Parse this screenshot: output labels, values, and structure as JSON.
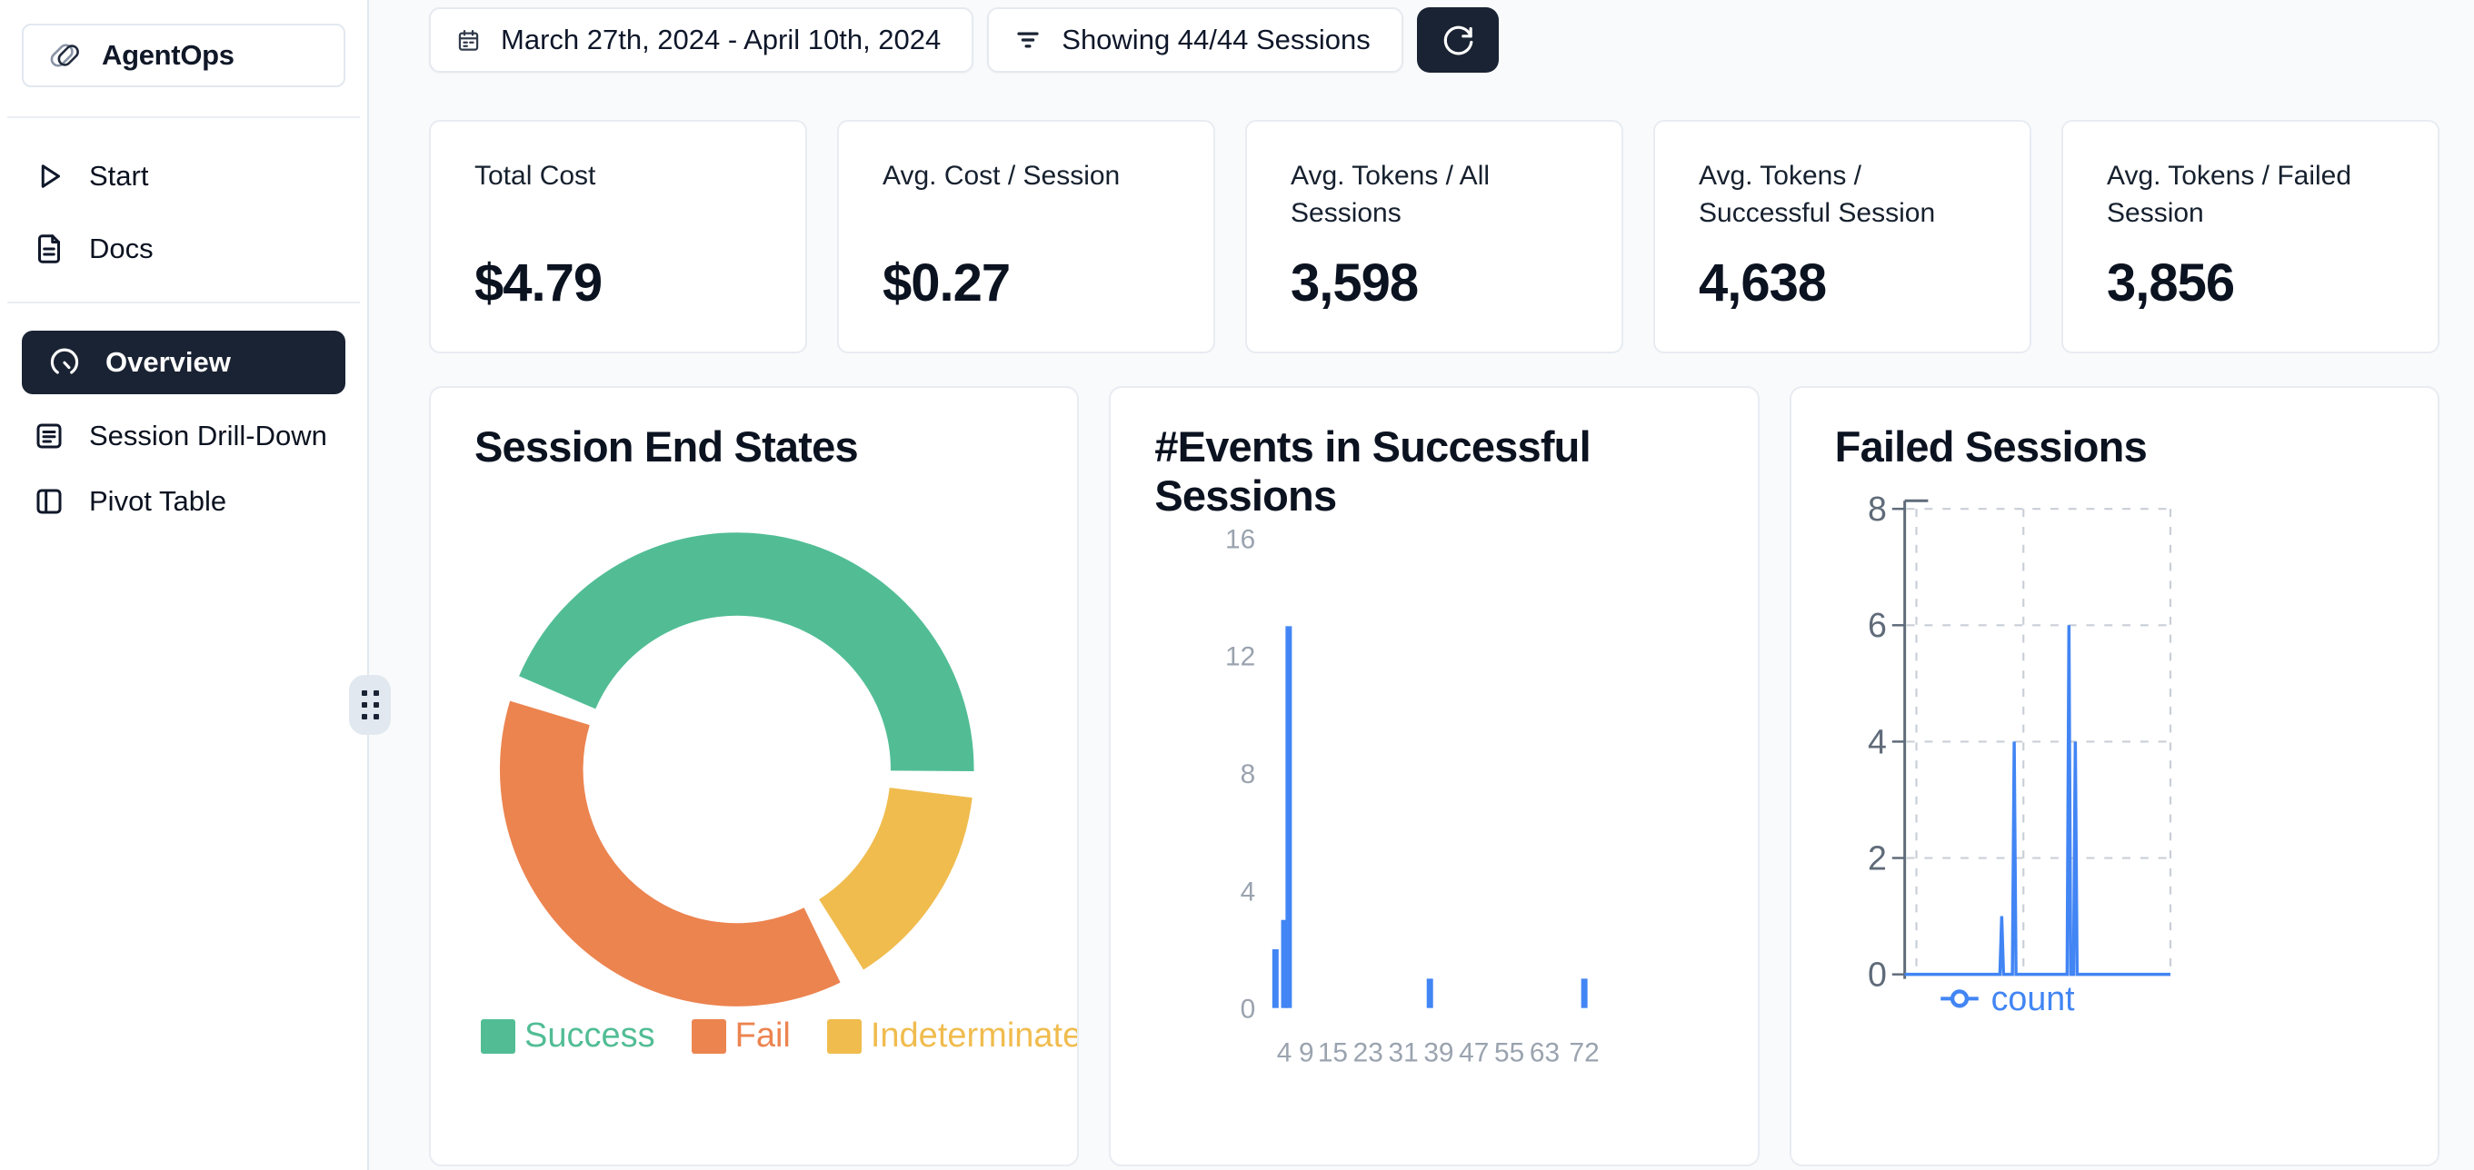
{
  "sidebar": {
    "logo": {
      "label": "AgentOps",
      "icon": "paperclip-icon"
    },
    "nav_top": [
      {
        "label": "Start",
        "icon": "play-icon"
      },
      {
        "label": "Docs",
        "icon": "document-icon"
      }
    ],
    "nav_main": [
      {
        "label": "Overview",
        "icon": "gauge-icon",
        "active": true
      },
      {
        "label": "Session Drill-Down",
        "icon": "file-lines-icon",
        "active": false
      },
      {
        "label": "Pivot Table",
        "icon": "panel-icon",
        "active": false
      }
    ]
  },
  "topbar": {
    "date_range": "March 27th, 2024 - April 10th, 2024",
    "sessions_filter": "Showing 44/44 Sessions"
  },
  "stats": [
    {
      "label": "Total Cost",
      "value": "$4.79"
    },
    {
      "label": "Avg. Cost / Session",
      "value": "$0.27"
    },
    {
      "label": "Avg. Tokens / All Sessions",
      "value": "3,598"
    },
    {
      "label": "Avg. Tokens / Successful Session",
      "value": "4,638"
    },
    {
      "label": "Avg. Tokens / Failed Session",
      "value": "3,856"
    }
  ],
  "colors": {
    "accent_blue": "#4285F4",
    "success_green": "#52BD95",
    "fail_orange": "#EC8450",
    "indeterminate_yellow": "#F0BC4E",
    "dark_navy": "#1A2333",
    "main_bg": "#F8FAFC",
    "panel_border": "#E8ECF2",
    "text_primary": "#0F172A",
    "tick_gray": "#9AA3AF",
    "axis_gray": "#606B79"
  },
  "chart_data": [
    {
      "type": "pie",
      "title": "Session End States",
      "labels": [
        "Success",
        "Fail",
        "Indeterminate"
      ],
      "values": [
        20,
        17,
        7
      ],
      "total": 44,
      "colors": [
        "#52BD95",
        "#EC8450",
        "#F0BC4E"
      ],
      "donut": true,
      "rotation_deg": 290,
      "slice_order_clockwise": [
        "Success",
        "Indeterminate",
        "Fail"
      ],
      "legend_position": "bottom"
    },
    {
      "type": "bar",
      "title": "#Events in Successful Sessions",
      "x": [
        2,
        4,
        5,
        37,
        72
      ],
      "values": [
        2,
        3,
        13,
        1,
        1
      ],
      "xticks": [
        4,
        9,
        15,
        23,
        31,
        39,
        47,
        55,
        63,
        72
      ],
      "yticks": [
        0,
        4,
        8,
        12,
        16
      ],
      "ylim": [
        0,
        16
      ],
      "xlabel": "",
      "ylabel": "",
      "bar_color": "#4285F4",
      "grid": false
    },
    {
      "type": "line",
      "title": "Failed Sessions",
      "series": [
        {
          "name": "count",
          "color": "#4285F4"
        }
      ],
      "baseline": 0,
      "spikes": [
        {
          "pos": 0.365,
          "value": 1
        },
        {
          "pos": 0.412,
          "value": 4
        },
        {
          "pos": 0.618,
          "value": 6
        },
        {
          "pos": 0.642,
          "value": 4
        }
      ],
      "yticks": [
        0,
        2,
        4,
        6,
        8
      ],
      "ylim": [
        0,
        8
      ],
      "grid": "dashed",
      "legend": "count",
      "legend_position": "bottom"
    }
  ]
}
